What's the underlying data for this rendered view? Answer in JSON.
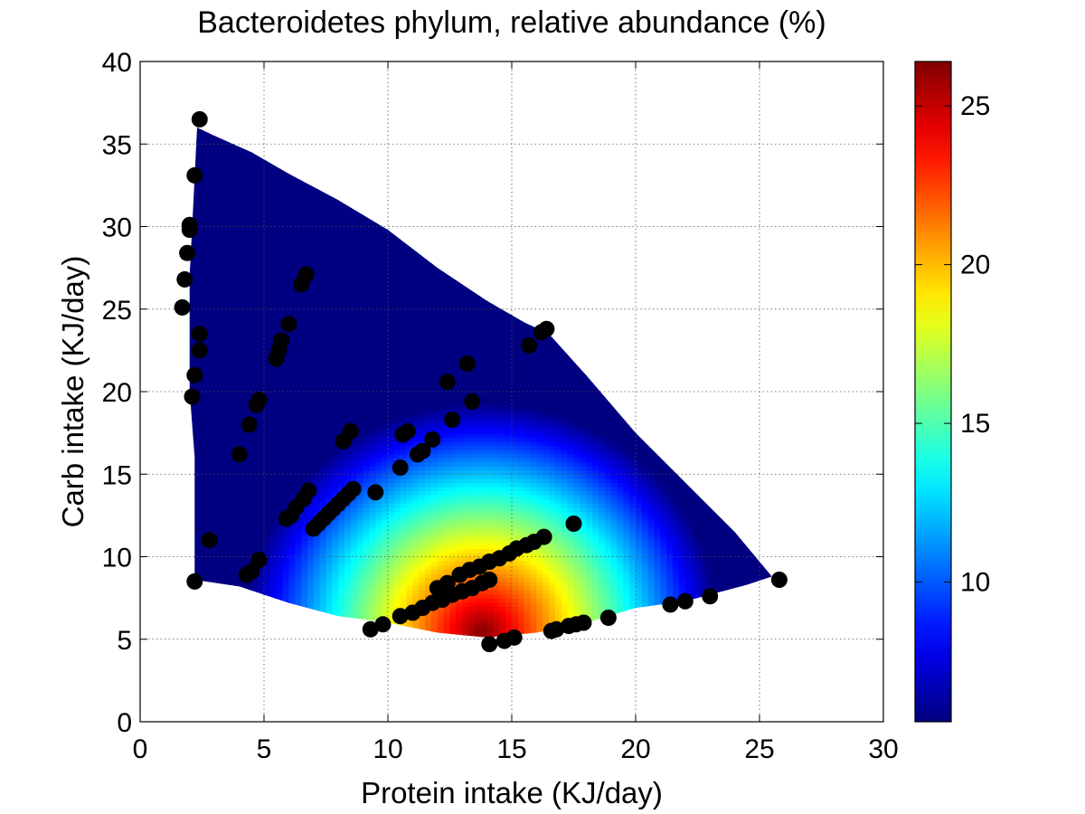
{
  "chart_data": {
    "type": "heatmap",
    "title": "Bacteroidetes phylum, relative abundance (%)",
    "xlabel": "Protein intake (KJ/day)",
    "ylabel": "Carb intake (KJ/day)",
    "xlim": [
      0,
      30
    ],
    "ylim": [
      0,
      40
    ],
    "xticks": [
      0,
      5,
      10,
      15,
      20,
      25,
      30
    ],
    "yticks": [
      0,
      5,
      10,
      15,
      20,
      25,
      30,
      35,
      40
    ],
    "grid": true,
    "colormap": "jet",
    "colorbar": {
      "range": [
        5.6,
        26.4
      ],
      "ticks": [
        10,
        15,
        20,
        25
      ]
    },
    "surface_peak": {
      "protein": 13.8,
      "carb": 5.5,
      "value": 26.4
    },
    "surface_region": [
      [
        2.3,
        36
      ],
      [
        3.0,
        35.5
      ],
      [
        4.5,
        34.5
      ],
      [
        6.0,
        33.2
      ],
      [
        8.0,
        31.6
      ],
      [
        10.0,
        29.8
      ],
      [
        12.0,
        27.5
      ],
      [
        14.0,
        25.5
      ],
      [
        15.5,
        24.2
      ],
      [
        16.5,
        23.5
      ],
      [
        18.0,
        21.0
      ],
      [
        20.0,
        17.5
      ],
      [
        22.0,
        14.5
      ],
      [
        24.0,
        11.5
      ],
      [
        25.5,
        8.8
      ],
      [
        24.5,
        8.3
      ],
      [
        22.0,
        7.3
      ],
      [
        20.0,
        6.9
      ],
      [
        18.0,
        6.0
      ],
      [
        16.0,
        5.4
      ],
      [
        14.0,
        5.1
      ],
      [
        12.0,
        5.4
      ],
      [
        10.0,
        6.0
      ],
      [
        8.0,
        6.4
      ],
      [
        6.0,
        7.2
      ],
      [
        4.0,
        8.2
      ],
      [
        2.2,
        8.6
      ],
      [
        2.2,
        16.0
      ],
      [
        2.0,
        20.0
      ],
      [
        2.0,
        27.0
      ],
      [
        2.2,
        33.0
      ]
    ],
    "scatter": [
      [
        2.4,
        36.5
      ],
      [
        2.2,
        33.1
      ],
      [
        2.0,
        30.1
      ],
      [
        2.0,
        29.8
      ],
      [
        1.9,
        28.4
      ],
      [
        1.8,
        26.8
      ],
      [
        1.7,
        25.1
      ],
      [
        2.4,
        23.5
      ],
      [
        2.4,
        22.5
      ],
      [
        2.2,
        21.0
      ],
      [
        2.1,
        19.7
      ],
      [
        2.2,
        8.5
      ],
      [
        2.8,
        11.0
      ],
      [
        4.0,
        16.2
      ],
      [
        4.4,
        18.0
      ],
      [
        4.7,
        19.2
      ],
      [
        4.8,
        19.5
      ],
      [
        4.3,
        8.9
      ],
      [
        4.5,
        9.1
      ],
      [
        4.8,
        9.8
      ],
      [
        5.5,
        22.0
      ],
      [
        5.6,
        22.5
      ],
      [
        5.7,
        23.1
      ],
      [
        6.0,
        24.1
      ],
      [
        6.5,
        26.5
      ],
      [
        6.7,
        27.1
      ],
      [
        5.9,
        12.3
      ],
      [
        6.1,
        12.5
      ],
      [
        6.3,
        13.0
      ],
      [
        6.6,
        13.5
      ],
      [
        6.8,
        14.0
      ],
      [
        7.0,
        11.7
      ],
      [
        7.2,
        12.0
      ],
      [
        7.4,
        12.3
      ],
      [
        7.6,
        12.6
      ],
      [
        7.8,
        12.9
      ],
      [
        8.0,
        13.2
      ],
      [
        8.2,
        13.5
      ],
      [
        8.4,
        13.8
      ],
      [
        8.6,
        14.1
      ],
      [
        8.2,
        17.0
      ],
      [
        8.5,
        17.6
      ],
      [
        9.5,
        13.9
      ],
      [
        9.3,
        5.6
      ],
      [
        9.8,
        5.9
      ],
      [
        10.5,
        15.4
      ],
      [
        10.6,
        17.4
      ],
      [
        10.8,
        17.6
      ],
      [
        11.2,
        16.2
      ],
      [
        11.4,
        16.4
      ],
      [
        11.8,
        17.1
      ],
      [
        12.4,
        20.6
      ],
      [
        12.6,
        18.3
      ],
      [
        13.2,
        21.7
      ],
      [
        13.4,
        19.4
      ],
      [
        10.5,
        6.4
      ],
      [
        11.0,
        6.6
      ],
      [
        11.4,
        6.9
      ],
      [
        11.8,
        7.2
      ],
      [
        12.2,
        7.4
      ],
      [
        12.6,
        7.7
      ],
      [
        13.0,
        7.9
      ],
      [
        13.4,
        8.1
      ],
      [
        13.8,
        8.4
      ],
      [
        14.1,
        8.6
      ],
      [
        12.0,
        8.1
      ],
      [
        12.4,
        8.4
      ],
      [
        12.9,
        8.9
      ],
      [
        13.3,
        9.2
      ],
      [
        13.7,
        9.4
      ],
      [
        14.1,
        9.7
      ],
      [
        14.5,
        9.9
      ],
      [
        14.9,
        10.2
      ],
      [
        15.2,
        10.5
      ],
      [
        15.6,
        10.7
      ],
      [
        15.9,
        10.9
      ],
      [
        16.3,
        11.2
      ],
      [
        14.1,
        4.7
      ],
      [
        14.7,
        4.9
      ],
      [
        15.1,
        5.1
      ],
      [
        15.7,
        22.8
      ],
      [
        16.2,
        23.6
      ],
      [
        16.4,
        23.8
      ],
      [
        16.6,
        5.5
      ],
      [
        16.8,
        5.6
      ],
      [
        17.3,
        5.8
      ],
      [
        17.6,
        5.9
      ],
      [
        17.9,
        6.0
      ],
      [
        17.5,
        12.0
      ],
      [
        18.9,
        6.3
      ],
      [
        21.4,
        7.1
      ],
      [
        22.0,
        7.3
      ],
      [
        23.0,
        7.6
      ],
      [
        25.8,
        8.6
      ]
    ]
  }
}
